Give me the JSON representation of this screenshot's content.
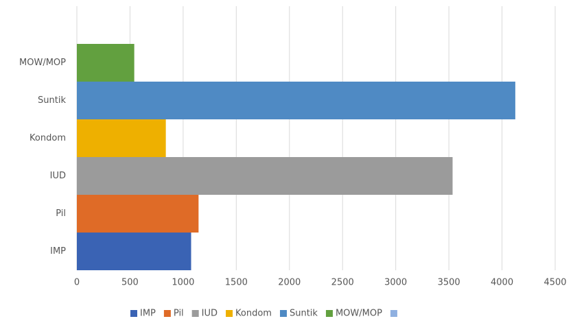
{
  "chart_data": {
    "type": "hbar",
    "categories": [
      "IMP",
      "Pil",
      "IUD",
      "Kondom",
      "Suntik",
      "MOW/MOP",
      null
    ],
    "values": [
      1075,
      1145,
      3535,
      837,
      4125,
      540,
      null
    ],
    "colors": [
      "#3a63b4",
      "#df6b27",
      "#9b9b9b",
      "#eeb000",
      "#4f8ac4",
      "#62a03f",
      "#8fb0e0"
    ],
    "xlim": [
      0,
      4500
    ],
    "xticks": [
      0,
      500,
      1000,
      1500,
      2000,
      2500,
      3000,
      3500,
      4000,
      4500
    ],
    "grid": true,
    "legend": "bottom"
  }
}
